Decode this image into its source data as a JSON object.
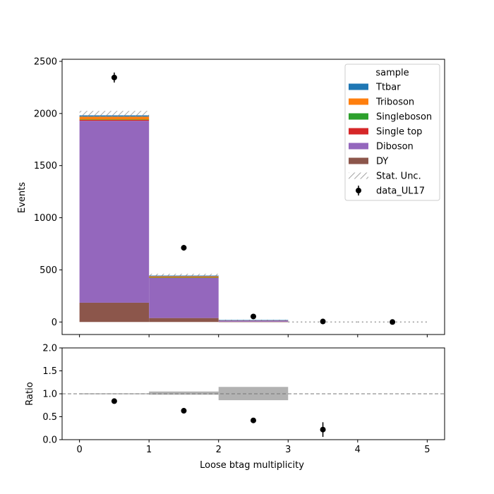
{
  "chart_data": [
    {
      "type": "bar",
      "stacked": true,
      "xlabel": "",
      "ylabel": "Events",
      "xlim": [
        -0.25,
        5.25
      ],
      "ylim": [
        -120,
        2520
      ],
      "yticks": [
        0,
        500,
        1000,
        1500,
        2000,
        2500
      ],
      "xticks": [
        0,
        1,
        2,
        3,
        4,
        5
      ],
      "bin_edges": [
        0,
        1,
        2,
        3,
        4,
        5
      ],
      "series": [
        {
          "name": "DY",
          "color": "#8c564b",
          "values": [
            185,
            38,
            3,
            0,
            0
          ]
        },
        {
          "name": "Diboson",
          "color": "#9467bd",
          "values": [
            1745,
            385,
            14,
            0,
            0
          ]
        },
        {
          "name": "Single top",
          "color": "#d62728",
          "values": [
            10,
            4,
            0,
            0,
            0
          ]
        },
        {
          "name": "Singleboson",
          "color": "#2ca02c",
          "values": [
            2,
            1,
            0,
            0,
            0
          ]
        },
        {
          "name": "Triboson",
          "color": "#ff7f0e",
          "values": [
            28,
            10,
            1,
            0,
            0
          ]
        },
        {
          "name": "Ttbar",
          "color": "#1f77b4",
          "values": [
            12,
            7,
            1,
            0,
            0
          ]
        }
      ],
      "stat_unc": {
        "name": "Stat. Unc.",
        "down": [
          1970,
          442,
          17,
          0,
          0
        ],
        "up": [
          2025,
          463,
          22,
          0,
          0
        ]
      },
      "data_points": {
        "name": "data_UL17",
        "x": [
          0.5,
          1.5,
          2.5,
          3.5,
          4.5
        ],
        "y": [
          2345,
          712,
          53,
          5,
          0
        ],
        "err": [
          48,
          27,
          7,
          2.2,
          0
        ]
      },
      "legend": {
        "title": "sample",
        "placement": "top-right",
        "entries": [
          "Ttbar",
          "Triboson",
          "Singleboson",
          "Single top",
          "Diboson",
          "DY",
          "Stat. Unc.",
          "data_UL17"
        ]
      }
    },
    {
      "type": "scatter",
      "xlabel": "Loose btag multiplicity",
      "ylabel": "Ratio",
      "xlim": [
        -0.25,
        5.25
      ],
      "ylim": [
        0,
        2
      ],
      "yticks": [
        "0.0",
        "0.5",
        "1.0",
        "1.5",
        "2.0"
      ],
      "xticks": [
        "0",
        "1",
        "2",
        "3",
        "4",
        "5"
      ],
      "ratio_points": {
        "x": [
          0.5,
          1.5,
          2.5,
          3.5
        ],
        "y": [
          0.84,
          0.63,
          0.42,
          0.22
        ],
        "err": [
          0.02,
          0.02,
          0.05,
          0.16
        ]
      },
      "unc_band": {
        "x0": [
          0,
          1,
          2
        ],
        "x1": [
          1,
          2,
          3
        ],
        "down": [
          0.99,
          0.98,
          0.86
        ],
        "up": [
          1.01,
          1.05,
          1.15
        ]
      },
      "reference_line": 1.0
    }
  ]
}
